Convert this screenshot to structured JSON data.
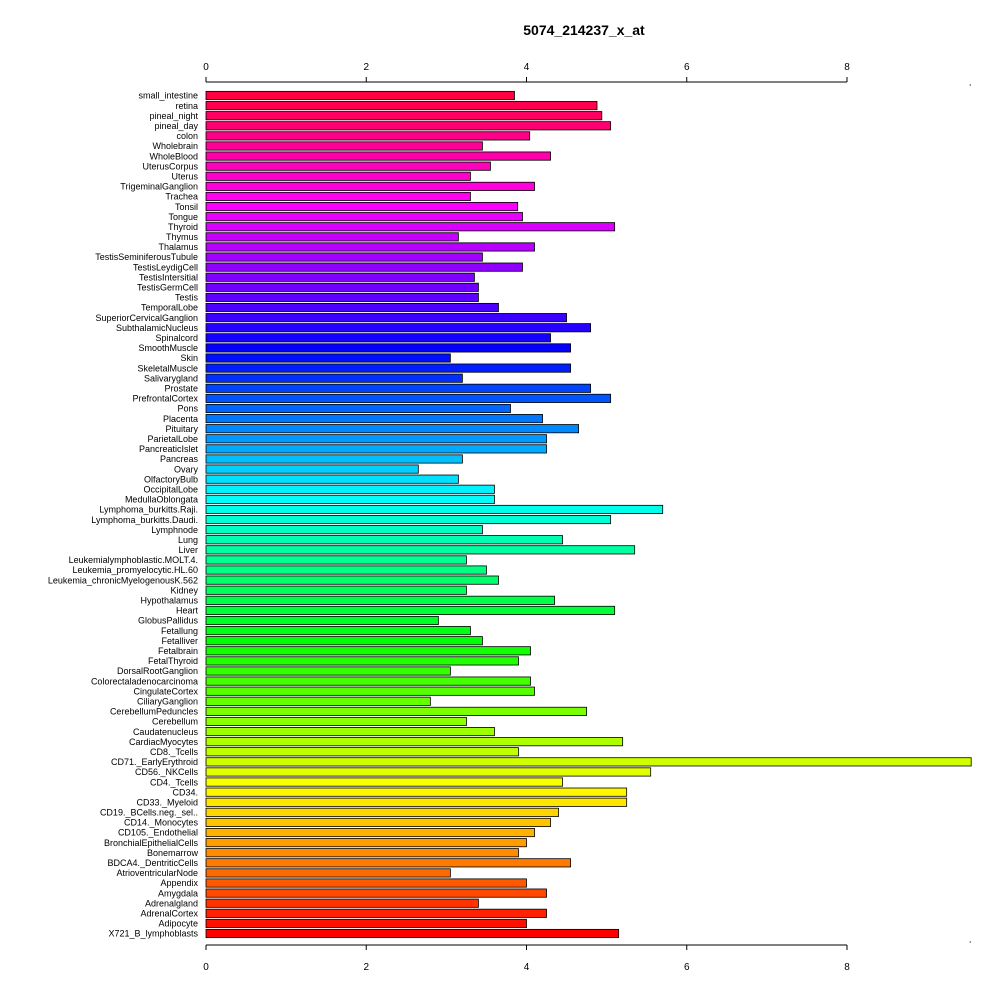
{
  "chart_data": {
    "type": "bar",
    "orientation": "horizontal",
    "title": "5074_214237_x_at",
    "xlabel": "",
    "ylabel": "",
    "xlim": [
      0,
      9.55
    ],
    "xticks": [
      0,
      2,
      4,
      6,
      8
    ],
    "xtick_labels": [
      "0",
      "2",
      "4",
      "6",
      "8"
    ],
    "grid": false,
    "legend": "none",
    "color_scheme": "rainbow, red at bottom through yellow, green, cyan, blue, violet, magenta to red at top",
    "categories": [
      "small_intestine",
      "retina",
      "pineal_night",
      "pineal_day",
      "colon",
      "Wholebrain",
      "WholeBlood",
      "UterusCorpus",
      "Uterus",
      "TrigeminalGanglion",
      "Trachea",
      "Tonsil",
      "Tongue",
      "Thyroid",
      "Thymus",
      "Thalamus",
      "TestisSeminiferousTubule",
      "TestisLeydigCell",
      "TestisIntersitial",
      "TestisGermCell",
      "Testis",
      "TemporalLobe",
      "SuperiorCervicalGanglion",
      "SubthalamicNucleus",
      "Spinalcord",
      "SmoothMuscle",
      "Skin",
      "SkeletalMuscle",
      "Salivarygland",
      "Prostate",
      "PrefrontalCortex",
      "Pons",
      "Placenta",
      "Pituitary",
      "ParietalLobe",
      "PancreaticIslet",
      "Pancreas",
      "Ovary",
      "OlfactoryBulb",
      "OccipitalLobe",
      "MedullaOblongata",
      "Lymphoma_burkitts.Raji.",
      "Lymphoma_burkitts.Daudi.",
      "Lymphnode",
      "Lung",
      "Liver",
      "Leukemialymphoblastic.MOLT.4.",
      "Leukemia_promyelocytic.HL.60",
      "Leukemia_chronicMyelogenousK.562",
      "Kidney",
      "Hypothalamus",
      "Heart",
      "GlobusPallidus",
      "Fetallung",
      "Fetalliver",
      "Fetalbrain",
      "FetalThyroid",
      "DorsalRootGanglion",
      "Colorectaladenocarcinoma",
      "CingulateCortex",
      "CiliaryGanglion",
      "CerebellumPeduncles",
      "Cerebellum",
      "Caudatenucleus",
      "CardiacMyocytes",
      "CD8._Tcells",
      "CD71._EarlyErythroid",
      "CD56._NKCells",
      "CD4._Tcells",
      "CD34.",
      "CD33._Myeloid",
      "CD19._BCells.neg._sel..",
      "CD14._Monocytes",
      "CD105._Endothelial",
      "BronchialEpithelialCells",
      "Bonemarrow",
      "BDCA4._DentriticCells",
      "AtrioventricularNode",
      "Appendix",
      "Amygdala",
      "Adrenalgland",
      "AdrenalCortex",
      "Adipocyte",
      "X721_B_lymphoblasts"
    ],
    "values": [
      3.85,
      4.88,
      4.94,
      5.05,
      4.04,
      3.45,
      4.3,
      3.55,
      3.3,
      4.1,
      3.3,
      3.89,
      3.95,
      5.1,
      3.15,
      4.1,
      3.45,
      3.95,
      3.35,
      3.4,
      3.4,
      3.65,
      4.5,
      4.8,
      4.3,
      4.55,
      3.05,
      4.55,
      3.2,
      4.8,
      5.05,
      3.8,
      4.2,
      4.65,
      4.25,
      4.25,
      3.2,
      2.65,
      3.15,
      3.6,
      3.6,
      5.7,
      5.05,
      3.45,
      4.45,
      5.35,
      3.25,
      3.5,
      3.65,
      3.25,
      4.35,
      5.1,
      2.9,
      3.3,
      3.45,
      4.05,
      3.9,
      3.05,
      4.05,
      4.1,
      2.8,
      4.75,
      3.25,
      3.6,
      5.2,
      3.9,
      9.55,
      5.55,
      4.45,
      5.25,
      5.25,
      4.4,
      4.3,
      4.1,
      4.0,
      3.9,
      4.55,
      3.05,
      4.0,
      4.25,
      3.4,
      4.25,
      4.0,
      5.15
    ]
  }
}
